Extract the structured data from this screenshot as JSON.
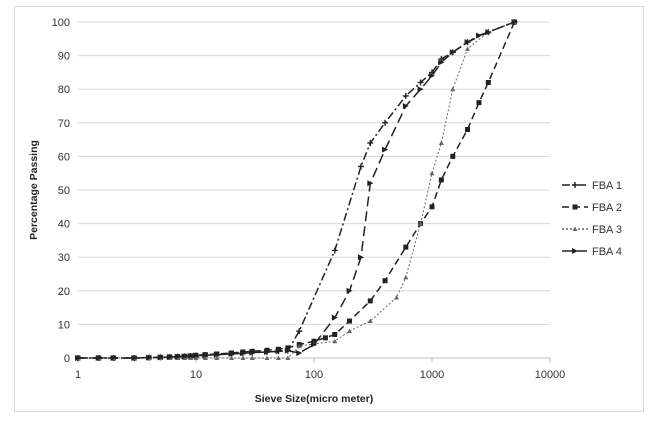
{
  "chart_data": {
    "type": "line",
    "xlabel": "Sieve Size(micro meter)",
    "ylabel": "Percentage Passing",
    "x_scale": "log",
    "xlim": [
      1,
      10000
    ],
    "ylim": [
      0,
      100
    ],
    "x_ticks": [
      "1",
      "10",
      "100",
      "1000",
      "10000"
    ],
    "y_ticks": [
      "0",
      "10",
      "20",
      "30",
      "40",
      "50",
      "60",
      "70",
      "80",
      "90",
      "100"
    ],
    "grid": "horizontal",
    "legend_position": "right",
    "series": [
      {
        "name": "FBA 1",
        "color": "#222222",
        "dash": "8 3 2 3",
        "marker": "plus",
        "points": [
          [
            1,
            0
          ],
          [
            1.5,
            0
          ],
          [
            2,
            0
          ],
          [
            3,
            0
          ],
          [
            4,
            0.1
          ],
          [
            5,
            0.2
          ],
          [
            6,
            0.3
          ],
          [
            7,
            0.4
          ],
          [
            8,
            0.5
          ],
          [
            9,
            0.6
          ],
          [
            10,
            0.7
          ],
          [
            12,
            0.8
          ],
          [
            15,
            1
          ],
          [
            20,
            1.2
          ],
          [
            25,
            1.4
          ],
          [
            30,
            1.6
          ],
          [
            40,
            1.8
          ],
          [
            50,
            2
          ],
          [
            60,
            2.2
          ],
          [
            75,
            8
          ],
          [
            150,
            32
          ],
          [
            250,
            57
          ],
          [
            300,
            64
          ],
          [
            400,
            70
          ],
          [
            600,
            78
          ],
          [
            800,
            82
          ],
          [
            1000,
            85
          ],
          [
            1200,
            89
          ],
          [
            1500,
            91
          ],
          [
            2000,
            94
          ],
          [
            3000,
            97
          ],
          [
            5000,
            100
          ]
        ]
      },
      {
        "name": "FBA 2",
        "color": "#222222",
        "dash": "7 4",
        "marker": "square",
        "points": [
          [
            1,
            0
          ],
          [
            1.5,
            0
          ],
          [
            2,
            0
          ],
          [
            3,
            0
          ],
          [
            4,
            0.1
          ],
          [
            5,
            0.2
          ],
          [
            6,
            0.3
          ],
          [
            7,
            0.4
          ],
          [
            8,
            0.5
          ],
          [
            9,
            0.6
          ],
          [
            10,
            0.8
          ],
          [
            12,
            1
          ],
          [
            15,
            1.2
          ],
          [
            20,
            1.5
          ],
          [
            25,
            1.8
          ],
          [
            30,
            2
          ],
          [
            40,
            2.3
          ],
          [
            50,
            2.6
          ],
          [
            60,
            3
          ],
          [
            75,
            4
          ],
          [
            100,
            5
          ],
          [
            125,
            6
          ],
          [
            150,
            7
          ],
          [
            200,
            11
          ],
          [
            300,
            17
          ],
          [
            400,
            23
          ],
          [
            600,
            33
          ],
          [
            800,
            40
          ],
          [
            1000,
            45
          ],
          [
            1200,
            53
          ],
          [
            1500,
            60
          ],
          [
            2000,
            68
          ],
          [
            2500,
            76
          ],
          [
            3000,
            82
          ],
          [
            5000,
            100
          ]
        ]
      },
      {
        "name": "FBA 3",
        "color": "#666666",
        "dash": "2 2",
        "marker": "triangle",
        "points": [
          [
            1,
            0
          ],
          [
            1.5,
            0
          ],
          [
            2,
            0
          ],
          [
            3,
            0
          ],
          [
            4,
            0
          ],
          [
            5,
            0
          ],
          [
            6,
            0
          ],
          [
            7,
            0
          ],
          [
            8,
            0
          ],
          [
            9,
            0
          ],
          [
            10,
            0
          ],
          [
            12,
            0
          ],
          [
            15,
            0
          ],
          [
            20,
            0
          ],
          [
            25,
            0
          ],
          [
            30,
            0
          ],
          [
            40,
            0
          ],
          [
            50,
            0
          ],
          [
            60,
            0
          ],
          [
            75,
            3.5
          ],
          [
            100,
            4.2
          ],
          [
            150,
            5
          ],
          [
            200,
            8
          ],
          [
            300,
            11
          ],
          [
            500,
            18
          ],
          [
            600,
            24
          ],
          [
            800,
            40
          ],
          [
            1000,
            55
          ],
          [
            1200,
            64
          ],
          [
            1500,
            80
          ],
          [
            2000,
            92
          ],
          [
            3000,
            97
          ],
          [
            5000,
            100
          ]
        ]
      },
      {
        "name": "FBA 4",
        "color": "#222222",
        "dash": "10 5",
        "marker": "arrow",
        "points": [
          [
            1,
            0
          ],
          [
            1.5,
            0
          ],
          [
            2,
            0
          ],
          [
            3,
            0
          ],
          [
            4,
            0.1
          ],
          [
            5,
            0.2
          ],
          [
            6,
            0.3
          ],
          [
            7,
            0.4
          ],
          [
            8,
            0.5
          ],
          [
            9,
            0.6
          ],
          [
            10,
            0.7
          ],
          [
            12,
            0.8
          ],
          [
            15,
            1
          ],
          [
            20,
            1.2
          ],
          [
            25,
            1.4
          ],
          [
            30,
            1.6
          ],
          [
            40,
            1.8
          ],
          [
            50,
            2
          ],
          [
            60,
            2.2
          ],
          [
            75,
            1.5
          ],
          [
            100,
            4
          ],
          [
            150,
            12
          ],
          [
            200,
            20
          ],
          [
            250,
            30
          ],
          [
            300,
            52
          ],
          [
            400,
            62
          ],
          [
            600,
            75
          ],
          [
            800,
            80
          ],
          [
            1000,
            84
          ],
          [
            1200,
            88
          ],
          [
            1500,
            91
          ],
          [
            2000,
            94
          ],
          [
            2500,
            96
          ],
          [
            3000,
            97
          ],
          [
            5000,
            100
          ]
        ]
      }
    ]
  }
}
